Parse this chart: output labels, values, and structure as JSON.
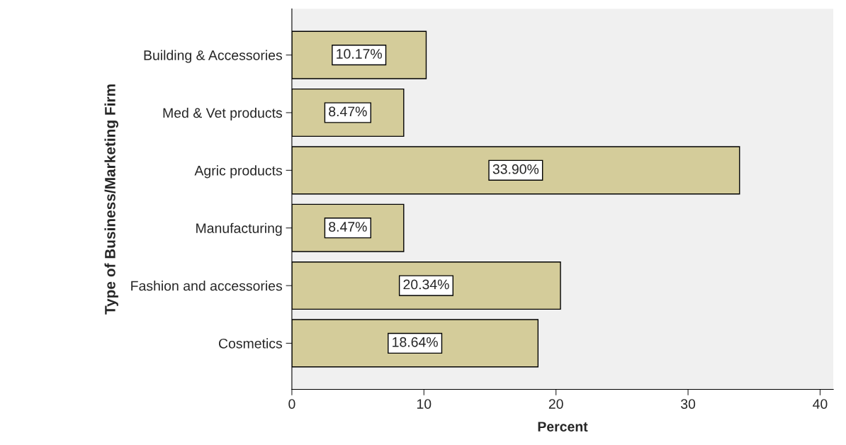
{
  "chart_data": {
    "type": "bar",
    "orientation": "horizontal",
    "xlabel": "Percent",
    "ylabel": "Type of Business/Marketing Firm",
    "categories": [
      "Building & Accessories",
      "Med & Vet products",
      "Agric products",
      "Manufacturing",
      "Fashion and accessories",
      "Cosmetics"
    ],
    "values": [
      10.17,
      8.47,
      33.9,
      8.47,
      20.34,
      18.64
    ],
    "value_labels": [
      "10.17%",
      "8.47%",
      "33.90%",
      "8.47%",
      "20.34%",
      "18.64%"
    ],
    "color": "#d4cc9a",
    "xlim": [
      0,
      41
    ],
    "xticks": [
      0,
      10,
      20,
      30,
      40
    ],
    "grid": false,
    "legend": false
  }
}
